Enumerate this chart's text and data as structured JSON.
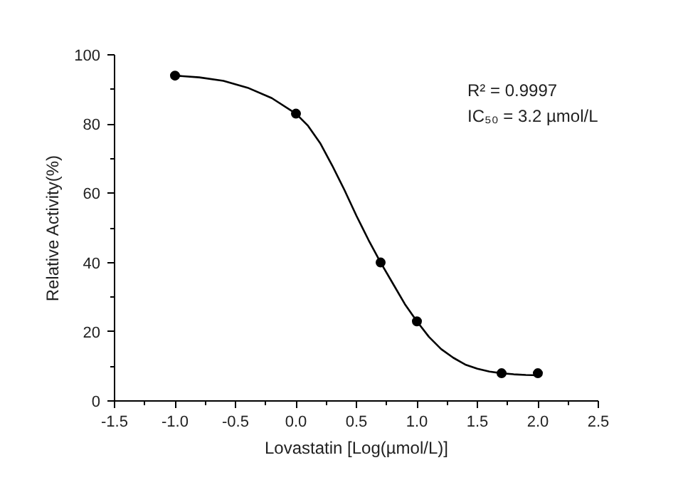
{
  "chart_data": {
    "type": "scatter",
    "xlabel": "Lovastatin [Log(µmol/L)]",
    "ylabel": "Relative Activity(%)",
    "series": [
      {
        "color": "#000000",
        "marker": "circle",
        "x": [
          -1,
          0,
          0.7,
          1,
          1.7,
          2
        ],
        "values": [
          94,
          83,
          40,
          23,
          8,
          8
        ]
      },
      {
        "type": "line",
        "color": "#000000",
        "line_style": "solid",
        "x": [
          -1,
          -0.8,
          -0.6,
          -0.4,
          -0.2,
          0,
          0.1,
          0.2,
          0.3,
          0.4,
          0.5,
          0.6,
          0.7,
          0.8,
          0.9,
          1.0,
          1.1,
          1.2,
          1.3,
          1.4,
          1.5,
          1.6,
          1.7,
          1.8,
          1.9,
          2.0
        ],
        "values": [
          94,
          93.5,
          92.5,
          90.5,
          87.5,
          83,
          79.5,
          74.5,
          68,
          61,
          53.5,
          46.5,
          40,
          34,
          28,
          23,
          18.5,
          15,
          12.5,
          10.5,
          9.3,
          8.5,
          8,
          7.7,
          7.5,
          7.4
        ]
      }
    ],
    "annotations": [
      "R² = 0.9997",
      "IC₅₀ = 3.2 µmol/L"
    ],
    "xlim": [
      -1.5,
      2.5
    ],
    "ylim": [
      0,
      100
    ],
    "xticks": [
      {
        "value": -1.5,
        "label": "-1.5"
      },
      {
        "value": -1,
        "label": "-1.0"
      },
      {
        "value": -0.5,
        "label": "-0.5"
      },
      {
        "value": 0,
        "label": "0.0"
      },
      {
        "value": 0.5,
        "label": "0.5"
      },
      {
        "value": 1,
        "label": "1.0"
      },
      {
        "value": 1.5,
        "label": "1.5"
      },
      {
        "value": 2,
        "label": "2.0"
      },
      {
        "value": 2.5,
        "label": "2.5"
      }
    ],
    "yticks": [
      0,
      20,
      40,
      60,
      80,
      100
    ],
    "grid": false
  }
}
